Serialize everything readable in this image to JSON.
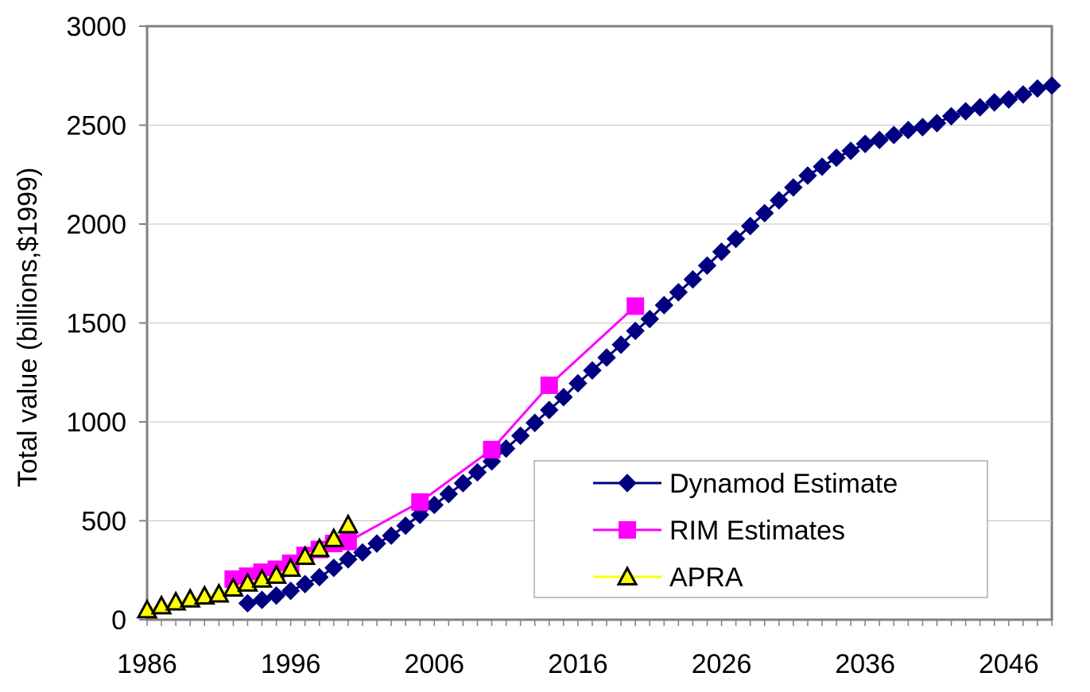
{
  "chart_data": {
    "type": "line",
    "title": "",
    "xlabel": "",
    "ylabel": "Total value (billions,$1999)",
    "xlim": [
      1986,
      2049
    ],
    "ylim": [
      0,
      3000
    ],
    "x_ticks": [
      1986,
      1996,
      2006,
      2016,
      2026,
      2036,
      2046
    ],
    "y_ticks": [
      0,
      500,
      1000,
      1500,
      2000,
      2500,
      3000
    ],
    "grid": "horizontal",
    "legend_position": "lower-right",
    "series": [
      {
        "name": "Dynamod Estimate",
        "color": "#000080",
        "marker": "diamond",
        "x": [
          1993,
          1994,
          1995,
          1996,
          1997,
          1998,
          1999,
          2000,
          2001,
          2002,
          2003,
          2004,
          2005,
          2006,
          2007,
          2008,
          2009,
          2010,
          2011,
          2012,
          2013,
          2014,
          2015,
          2016,
          2017,
          2018,
          2019,
          2020,
          2021,
          2022,
          2023,
          2024,
          2025,
          2026,
          2027,
          2028,
          2029,
          2030,
          2031,
          2032,
          2033,
          2034,
          2035,
          2036,
          2037,
          2038,
          2039,
          2040,
          2041,
          2042,
          2043,
          2044,
          2045,
          2046,
          2047,
          2048,
          2049
        ],
        "y": [
          83,
          100,
          122,
          146,
          180,
          215,
          262,
          305,
          340,
          385,
          425,
          475,
          530,
          580,
          635,
          690,
          745,
          800,
          865,
          930,
          995,
          1060,
          1125,
          1195,
          1260,
          1325,
          1390,
          1460,
          1520,
          1590,
          1655,
          1720,
          1790,
          1860,
          1925,
          1990,
          2055,
          2120,
          2185,
          2245,
          2290,
          2335,
          2370,
          2405,
          2425,
          2450,
          2475,
          2490,
          2510,
          2545,
          2570,
          2590,
          2615,
          2630,
          2655,
          2685,
          2700
        ]
      },
      {
        "name": "RIM Estimates",
        "color": "#FF00FF",
        "marker": "square",
        "x": [
          1992,
          1993,
          1994,
          1995,
          1996,
          1997,
          1998,
          1999,
          2000,
          2005,
          2010,
          2014,
          2020
        ],
        "y": [
          205,
          220,
          240,
          255,
          285,
          325,
          355,
          385,
          395,
          595,
          860,
          1185,
          1585
        ]
      },
      {
        "name": "APRA",
        "color": "#FFFF00",
        "marker": "triangle",
        "x": [
          1986,
          1987,
          1988,
          1989,
          1990,
          1991,
          1992,
          1993,
          1994,
          1995,
          1996,
          1997,
          1998,
          1999,
          2000
        ],
        "y": [
          50,
          70,
          90,
          105,
          120,
          130,
          160,
          185,
          205,
          225,
          260,
          320,
          360,
          410,
          480
        ]
      }
    ]
  }
}
